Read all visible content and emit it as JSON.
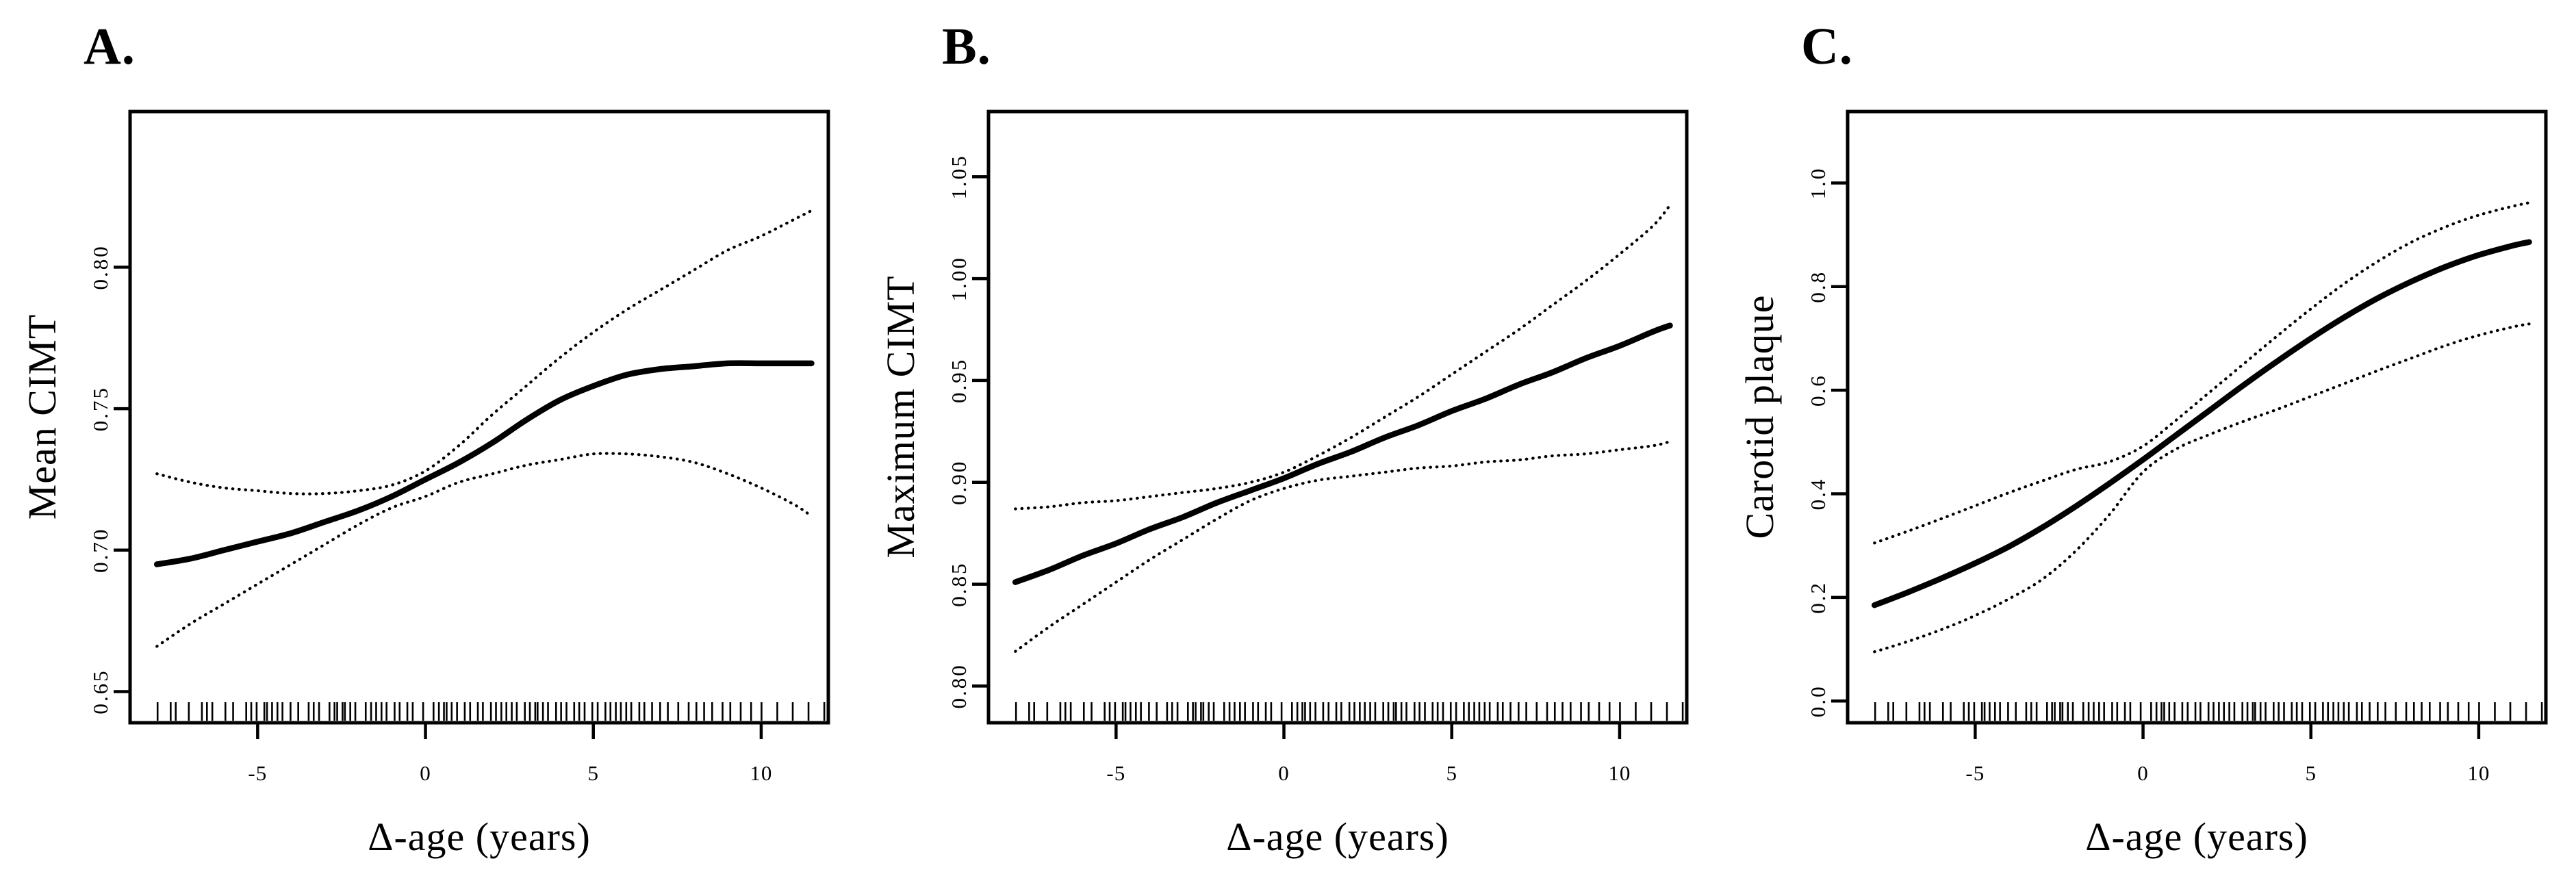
{
  "figure": {
    "background_color": "#ffffff",
    "line_color": "#000000",
    "x_axis_label": "Δ-age (years)",
    "x_ticks": [
      -5,
      0,
      5,
      10
    ],
    "x_tick_labels": [
      "-5",
      "0",
      "5",
      "10"
    ],
    "xlim": [
      -8.8,
      12.0
    ],
    "rug_x": [
      -7.98,
      -7.59,
      -7.44,
      -7.05,
      -6.66,
      -6.51,
      -6.35,
      -5.96,
      -5.73,
      -5.34,
      -5.19,
      -5.03,
      -4.8,
      -4.72,
      -4.57,
      -4.41,
      -4.26,
      -4.02,
      -3.79,
      -3.48,
      -3.33,
      -3.17,
      -2.86,
      -2.71,
      -2.63,
      -2.47,
      -2.4,
      -2.24,
      -2.09,
      -1.78,
      -1.62,
      -1.47,
      -1.31,
      -1.16,
      -0.92,
      -0.77,
      -0.54,
      -0.38,
      -0.07,
      0.24,
      0.4,
      0.55,
      0.63,
      0.78,
      0.94,
      1.17,
      1.33,
      1.56,
      1.71,
      1.95,
      2.1,
      2.26,
      2.41,
      2.57,
      2.72,
      2.96,
      3.11,
      3.27,
      3.34,
      3.5,
      3.65,
      3.89,
      4.04,
      4.2,
      4.43,
      4.58,
      4.74,
      4.97,
      5.13,
      5.36,
      5.51,
      5.67,
      5.82,
      5.98,
      6.13,
      6.37,
      6.52,
      6.75,
      6.99,
      7.22,
      7.53,
      7.84,
      8.07,
      8.3,
      8.54,
      8.85,
      9.08,
      9.39,
      9.7,
      10.01,
      10.48,
      10.94,
      11.41,
      11.88
    ]
  },
  "chart_data": [
    {
      "type": "line",
      "panel_label": "A.",
      "xlabel": "Δ-age (years)",
      "ylabel": "Mean CIMT",
      "xlim": [
        -8.8,
        12.0
      ],
      "ylim": [
        0.639,
        0.855
      ],
      "x_ticks": [
        -5,
        0,
        5,
        10
      ],
      "x_tick_labels": [
        "-5",
        "0",
        "5",
        "10"
      ],
      "y_ticks": [
        0.65,
        0.7,
        0.75,
        0.8
      ],
      "y_tick_labels": [
        "0.65",
        "0.70",
        "0.75",
        "0.80"
      ],
      "grid": false,
      "legend": "none",
      "rug": "figure.rug_x",
      "x": [
        -8,
        -7,
        -6,
        -5,
        -4,
        -3,
        -2,
        -1,
        0,
        1,
        2,
        3,
        4,
        5,
        6,
        7,
        8,
        9,
        10,
        11,
        11.5
      ],
      "series": [
        {
          "name": "fitted smooth",
          "style": "solid",
          "values": [
            0.695,
            0.697,
            0.7,
            0.703,
            0.706,
            0.71,
            0.714,
            0.719,
            0.725,
            0.731,
            0.738,
            0.746,
            0.753,
            0.758,
            0.762,
            0.764,
            0.765,
            0.766,
            0.766,
            0.766,
            0.766
          ]
        },
        {
          "name": "upper 95% CI",
          "style": "dotted",
          "values": [
            0.727,
            0.724,
            0.722,
            0.721,
            0.72,
            0.72,
            0.721,
            0.723,
            0.728,
            0.737,
            0.748,
            0.758,
            0.768,
            0.777,
            0.785,
            0.792,
            0.799,
            0.806,
            0.811,
            0.817,
            0.82
          ]
        },
        {
          "name": "lower 95% CI",
          "style": "dotted",
          "values": [
            0.666,
            0.674,
            0.681,
            0.688,
            0.695,
            0.702,
            0.709,
            0.715,
            0.719,
            0.724,
            0.727,
            0.73,
            0.732,
            0.734,
            0.734,
            0.733,
            0.731,
            0.727,
            0.722,
            0.716,
            0.712
          ]
        }
      ]
    },
    {
      "type": "line",
      "panel_label": "B.",
      "xlabel": "Δ-age (years)",
      "ylabel": "Maximum CIMT",
      "xlim": [
        -8.8,
        12.0
      ],
      "ylim": [
        0.782,
        1.082
      ],
      "x_ticks": [
        -5,
        0,
        5,
        10
      ],
      "x_tick_labels": [
        "-5",
        "0",
        "5",
        "10"
      ],
      "y_ticks": [
        0.8,
        0.85,
        0.9,
        0.95,
        1.0,
        1.05
      ],
      "y_tick_labels": [
        "0.80",
        "0.85",
        "0.90",
        "0.95",
        "1.00",
        "1.05"
      ],
      "grid": false,
      "legend": "none",
      "rug": "figure.rug_x",
      "x": [
        -8,
        -7,
        -6,
        -5,
        -4,
        -3,
        -2,
        -1,
        0,
        1,
        2,
        3,
        4,
        5,
        6,
        7,
        8,
        9,
        10,
        11,
        11.5
      ],
      "series": [
        {
          "name": "fitted smooth",
          "style": "solid",
          "values": [
            0.851,
            0.857,
            0.864,
            0.87,
            0.877,
            0.883,
            0.89,
            0.896,
            0.902,
            0.909,
            0.915,
            0.922,
            0.928,
            0.935,
            0.941,
            0.948,
            0.954,
            0.961,
            0.967,
            0.974,
            0.977
          ]
        },
        {
          "name": "upper 95% CI",
          "style": "dotted",
          "values": [
            0.887,
            0.888,
            0.89,
            0.891,
            0.893,
            0.895,
            0.897,
            0.9,
            0.905,
            0.913,
            0.922,
            0.932,
            0.942,
            0.953,
            0.964,
            0.975,
            0.987,
            0.999,
            1.012,
            1.026,
            1.036
          ]
        },
        {
          "name": "lower 95% CI",
          "style": "dotted",
          "values": [
            0.817,
            0.829,
            0.84,
            0.851,
            0.862,
            0.872,
            0.882,
            0.891,
            0.897,
            0.901,
            0.903,
            0.905,
            0.907,
            0.908,
            0.91,
            0.911,
            0.913,
            0.914,
            0.916,
            0.918,
            0.92
          ]
        }
      ]
    },
    {
      "type": "line",
      "panel_label": "C.",
      "xlabel": "Δ-age (years)",
      "ylabel": "Carotid plaque",
      "xlim": [
        -8.8,
        12.0
      ],
      "ylim": [
        -0.042,
        1.138
      ],
      "x_ticks": [
        -5,
        0,
        5,
        10
      ],
      "x_tick_labels": [
        "-5",
        "0",
        "5",
        "10"
      ],
      "y_ticks": [
        0.0,
        0.2,
        0.4,
        0.6,
        0.8,
        1.0
      ],
      "y_tick_labels": [
        "0.0",
        "0.2",
        "0.4",
        "0.6",
        "0.8",
        "1.0"
      ],
      "grid": false,
      "legend": "none",
      "rug": "figure.rug_x",
      "x": [
        -8,
        -7,
        -6,
        -5,
        -4,
        -3,
        -2,
        -1,
        0,
        1,
        2,
        3,
        4,
        5,
        6,
        7,
        8,
        9,
        10,
        11,
        11.5
      ],
      "series": [
        {
          "name": "fitted smooth",
          "style": "solid",
          "values": [
            0.185,
            0.21,
            0.237,
            0.266,
            0.298,
            0.335,
            0.376,
            0.42,
            0.466,
            0.514,
            0.562,
            0.61,
            0.656,
            0.7,
            0.741,
            0.778,
            0.81,
            0.838,
            0.861,
            0.879,
            0.886
          ]
        },
        {
          "name": "upper 95% CI",
          "style": "dotted",
          "values": [
            0.305,
            0.328,
            0.352,
            0.377,
            0.402,
            0.425,
            0.447,
            0.462,
            0.492,
            0.543,
            0.597,
            0.651,
            0.705,
            0.757,
            0.806,
            0.849,
            0.886,
            0.915,
            0.938,
            0.955,
            0.962
          ]
        },
        {
          "name": "lower 95% CI",
          "style": "dotted",
          "values": [
            0.095,
            0.115,
            0.138,
            0.165,
            0.197,
            0.235,
            0.29,
            0.36,
            0.442,
            0.487,
            0.515,
            0.54,
            0.563,
            0.588,
            0.613,
            0.638,
            0.662,
            0.686,
            0.706,
            0.722,
            0.728
          ]
        }
      ]
    }
  ]
}
